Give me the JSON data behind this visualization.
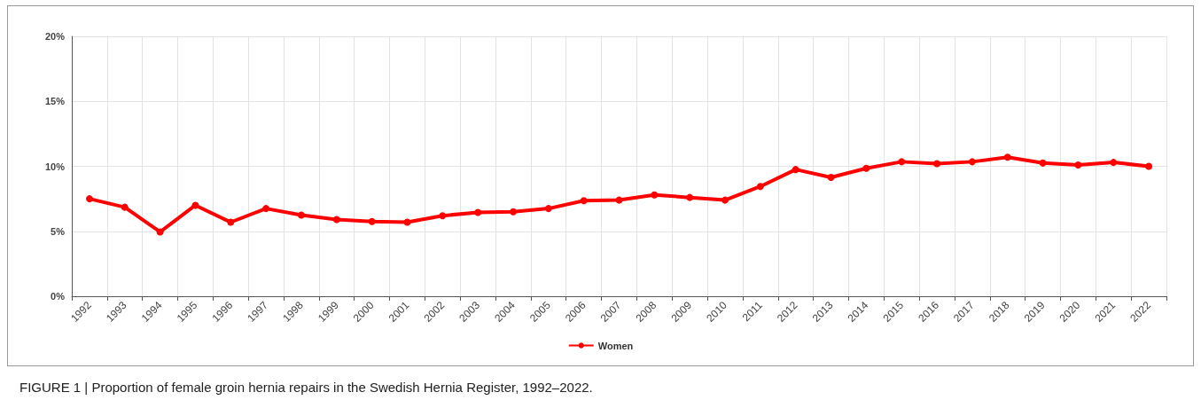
{
  "chart_data": {
    "type": "line",
    "categories": [
      "1992",
      "1993",
      "1994",
      "1995",
      "1996",
      "1997",
      "1998",
      "1999",
      "2000",
      "2001",
      "2002",
      "2003",
      "2004",
      "2005",
      "2006",
      "2007",
      "2008",
      "2009",
      "2010",
      "2011",
      "2012",
      "2013",
      "2014",
      "2015",
      "2016",
      "2017",
      "2018",
      "2019",
      "2020",
      "2021",
      "2022"
    ],
    "series": [
      {
        "name": "Women",
        "color": "#ff0000",
        "values": [
          7.5,
          6.85,
          4.95,
          7.0,
          5.7,
          6.75,
          6.25,
          5.9,
          5.75,
          5.7,
          6.2,
          6.45,
          6.5,
          6.75,
          7.35,
          7.4,
          7.8,
          7.6,
          7.4,
          8.45,
          9.75,
          9.15,
          9.85,
          10.35,
          10.2,
          10.35,
          10.7,
          10.25,
          10.1,
          10.3,
          10.0
        ]
      }
    ],
    "ylim": [
      0,
      20
    ],
    "yticks": [
      {
        "value": 0,
        "label": "0%"
      },
      {
        "value": 5,
        "label": "5%"
      },
      {
        "value": 10,
        "label": "10%"
      },
      {
        "value": 15,
        "label": "15%"
      },
      {
        "value": 20,
        "label": "20%"
      }
    ],
    "grid": true,
    "legend": "bottom",
    "marker": "circle",
    "line_style": "solid",
    "annotations": [
      "FIGURE 1 | Proportion of female groin hernia repairs in the Swedish Hernia Register, 1992–2022."
    ]
  }
}
